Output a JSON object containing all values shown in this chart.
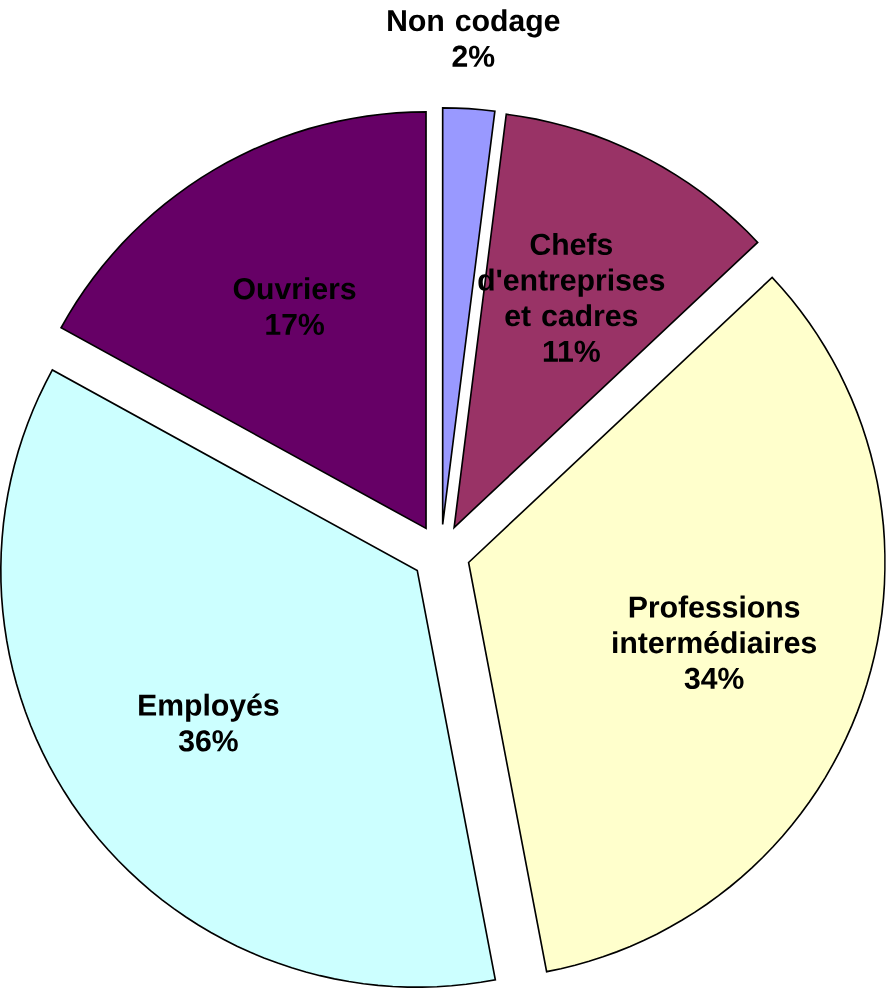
{
  "chart_data": {
    "type": "pie",
    "categories": [
      "Non codage",
      "Chefs d'entreprises et cadres",
      "Professions intermédiaires",
      "Employés",
      "Ouvriers"
    ],
    "values": [
      2,
      11,
      34,
      36,
      17
    ],
    "colors": [
      "#9999ff",
      "#993366",
      "#ffffcc",
      "#ccffff",
      "#660066"
    ],
    "value_labels": [
      "2%",
      "11%",
      "34%",
      "36%",
      "17%"
    ]
  }
}
